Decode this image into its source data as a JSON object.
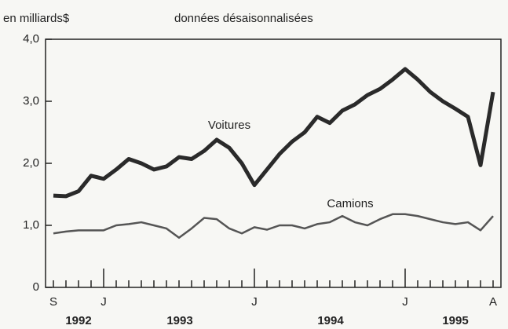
{
  "chart_data": {
    "type": "line",
    "unit_label": "en milliards$",
    "subtitle": "données désaisonnalisées",
    "categories": [
      "S",
      null,
      null,
      null,
      "J",
      null,
      null,
      null,
      null,
      null,
      null,
      null,
      null,
      null,
      null,
      null,
      "J",
      null,
      null,
      null,
      null,
      null,
      null,
      null,
      null,
      null,
      null,
      null,
      "J",
      null,
      null,
      null,
      null,
      null,
      null,
      "A"
    ],
    "year_labels": [
      "1992",
      "1993",
      "1994",
      "1995"
    ],
    "series": [
      {
        "name": "Voitures",
        "color": "#2a2a2a",
        "values": [
          1.48,
          1.47,
          1.55,
          1.8,
          1.75,
          1.9,
          2.07,
          2.0,
          1.9,
          1.95,
          2.1,
          2.07,
          2.2,
          2.38,
          2.25,
          2.0,
          1.65,
          1.9,
          2.15,
          2.35,
          2.5,
          2.75,
          2.65,
          2.85,
          2.95,
          3.1,
          3.2,
          3.35,
          3.52,
          3.35,
          3.15,
          3.0,
          2.88,
          2.75,
          1.97,
          3.15
        ]
      },
      {
        "name": "Camions",
        "color": "#555555",
        "values": [
          0.87,
          0.9,
          0.92,
          0.92,
          0.92,
          1.0,
          1.02,
          1.05,
          1.0,
          0.95,
          0.8,
          0.95,
          1.12,
          1.1,
          0.95,
          0.87,
          0.97,
          0.93,
          1.0,
          1.0,
          0.95,
          1.02,
          1.05,
          1.15,
          1.05,
          1.0,
          1.1,
          1.18,
          1.18,
          1.15,
          1.1,
          1.05,
          1.02,
          1.05,
          0.92,
          1.15
        ]
      }
    ],
    "ylim": [
      0,
      4
    ],
    "yticks": [
      0,
      {
        "value": 1,
        "label": "1,0"
      },
      {
        "value": 2,
        "label": "2,0"
      },
      {
        "value": 3,
        "label": "3,0"
      },
      {
        "value": 4,
        "label": "4,0"
      }
    ]
  }
}
